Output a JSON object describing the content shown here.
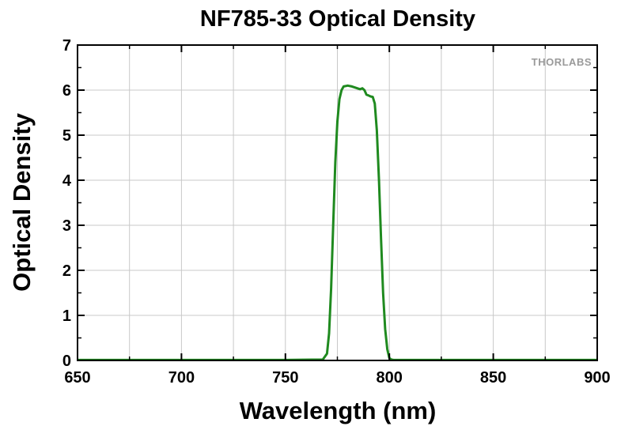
{
  "chart_data": {
    "type": "line",
    "title": "NF785-33 Optical Density",
    "xlabel": "Wavelength (nm)",
    "ylabel": "Optical Density",
    "xlim": [
      650,
      900
    ],
    "ylim": [
      0,
      7
    ],
    "xticks": [
      650,
      700,
      750,
      800,
      850,
      900
    ],
    "yticks": [
      0,
      1,
      2,
      3,
      4,
      5,
      6,
      7
    ],
    "grid": true,
    "legend": "none",
    "watermark": "THORLABS",
    "series": [
      {
        "color": "#1f8a1f",
        "x": [
          650,
          700,
          750,
          768,
          770,
          771,
          772,
          773,
          774,
          775,
          776,
          777,
          778,
          780,
          782,
          784,
          786,
          787,
          788,
          789,
          790,
          791,
          792,
          793,
          794,
          795,
          796,
          797,
          798,
          799,
          800,
          801,
          802,
          804,
          820,
          850,
          900
        ],
        "y": [
          0.01,
          0.01,
          0.01,
          0.02,
          0.15,
          0.6,
          1.6,
          3.0,
          4.4,
          5.3,
          5.8,
          6.0,
          6.08,
          6.1,
          6.08,
          6.05,
          6.02,
          6.04,
          6.0,
          5.9,
          5.88,
          5.86,
          5.85,
          5.7,
          5.1,
          4.0,
          2.7,
          1.5,
          0.7,
          0.25,
          0.05,
          0.02,
          0.01,
          0.01,
          0.01,
          0.01,
          0.01
        ]
      }
    ]
  }
}
